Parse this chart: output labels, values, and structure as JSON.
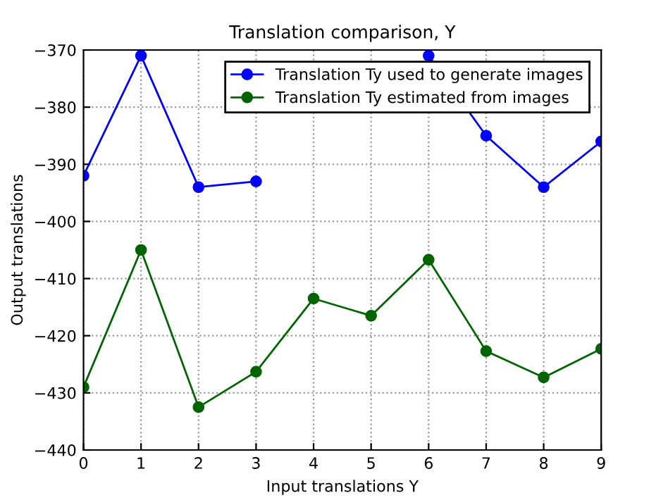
{
  "chart_data": {
    "type": "line",
    "title": "Translation comparison, Y",
    "xlabel": "Input translations Y",
    "ylabel": "Output translations",
    "x": [
      0,
      1,
      2,
      3,
      4,
      5,
      6,
      7,
      8,
      9
    ],
    "series": [
      {
        "name": "Translation Ty used to generate images",
        "color": "#0000ff",
        "values": [
          -392,
          -371,
          -394,
          -393,
          null,
          null,
          -371,
          -385,
          -394,
          -386
        ]
      },
      {
        "name": "Translation Ty estimated from images",
        "color": "#006400",
        "values": [
          -429,
          -405,
          -432.5,
          -426.3,
          -413.5,
          -416.5,
          -406.7,
          -422.7,
          -427.3,
          -422.3
        ]
      }
    ],
    "xlim": [
      0,
      9
    ],
    "ylim": [
      -440,
      -370
    ],
    "xticks": [
      0,
      1,
      2,
      3,
      4,
      5,
      6,
      7,
      8,
      9
    ],
    "yticks": [
      -440,
      -430,
      -420,
      -410,
      -400,
      -390,
      -380,
      -370
    ],
    "grid": true,
    "legend": "top right",
    "marker": "circle",
    "line_style": "solid"
  }
}
